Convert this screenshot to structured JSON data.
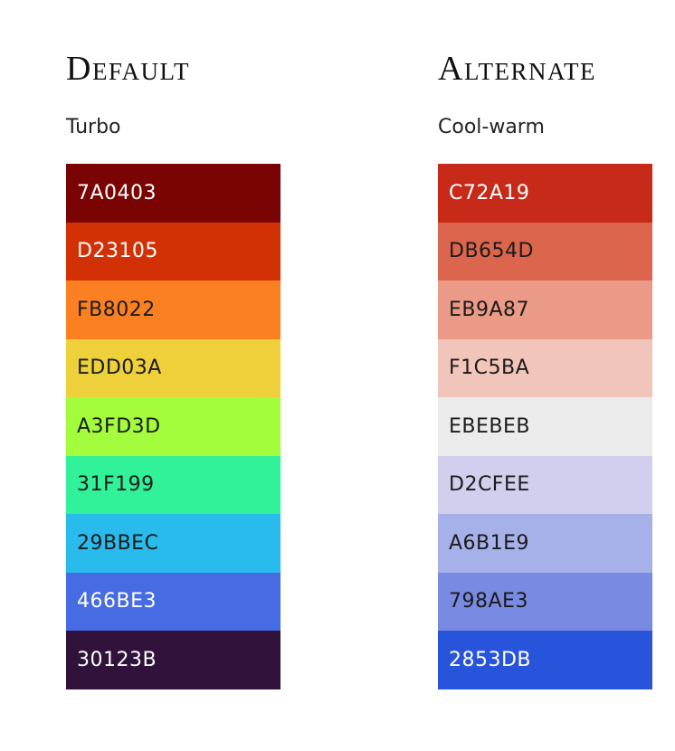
{
  "columns": [
    {
      "heading": "Default",
      "subtitle": "Turbo",
      "swatches": [
        {
          "label": "7A0403",
          "color": "#7A0403",
          "text_color": "#ffffff"
        },
        {
          "label": "D23105",
          "color": "#D23105",
          "text_color": "#ffffff"
        },
        {
          "label": "FB8022",
          "color": "#FB8022",
          "text_color": "#1b1b1b"
        },
        {
          "label": "EDD03A",
          "color": "#EDD03A",
          "text_color": "#1b1b1b"
        },
        {
          "label": "A3FD3D",
          "color": "#A3FD3D",
          "text_color": "#1b1b1b"
        },
        {
          "label": "31F199",
          "color": "#31F199",
          "text_color": "#1b1b1b"
        },
        {
          "label": "29BBEC",
          "color": "#29BBEC",
          "text_color": "#1b1b1b"
        },
        {
          "label": "466BE3",
          "color": "#466BE3",
          "text_color": "#ffffff"
        },
        {
          "label": "30123B",
          "color": "#30123B",
          "text_color": "#ffffff"
        }
      ]
    },
    {
      "heading": "Alternate",
      "subtitle": "Cool-warm",
      "swatches": [
        {
          "label": "C72A19",
          "color": "#C72A19",
          "text_color": "#ffffff"
        },
        {
          "label": "DB654D",
          "color": "#DB654D",
          "text_color": "#1b1b1b"
        },
        {
          "label": "EB9A87",
          "color": "#EB9A87",
          "text_color": "#1b1b1b"
        },
        {
          "label": "F1C5BA",
          "color": "#F1C5BA",
          "text_color": "#1b1b1b"
        },
        {
          "label": "EBEBEB",
          "color": "#EBEBEB",
          "text_color": "#1b1b1b"
        },
        {
          "label": "D2CFEE",
          "color": "#D2CFEE",
          "text_color": "#1b1b1b"
        },
        {
          "label": "A6B1E9",
          "color": "#A6B1E9",
          "text_color": "#1b1b1b"
        },
        {
          "label": "798AE3",
          "color": "#798AE3",
          "text_color": "#1b1b1b"
        },
        {
          "label": "2853DB",
          "color": "#2853DB",
          "text_color": "#ffffff"
        }
      ]
    }
  ]
}
